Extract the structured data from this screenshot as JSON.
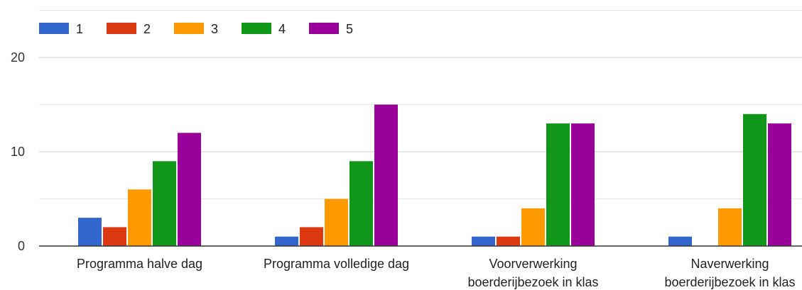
{
  "chart_data": {
    "type": "bar",
    "title": "",
    "xlabel": "",
    "ylabel": "",
    "ylim": [
      0,
      25
    ],
    "yticks": [
      0,
      10,
      20
    ],
    "grid": true,
    "legend_position": "top-left",
    "categories": [
      [
        "Programma halve dag"
      ],
      [
        "Programma volledige dag"
      ],
      [
        "Voorverwerking",
        "boerderijbezoek in klas"
      ],
      [
        "Naverwerking",
        "boerderijbezoek in klas"
      ]
    ],
    "series": [
      {
        "name": "1",
        "color": "#3366cc",
        "values": [
          3,
          1,
          1,
          1
        ]
      },
      {
        "name": "2",
        "color": "#dc3912",
        "values": [
          2,
          2,
          1,
          0
        ]
      },
      {
        "name": "3",
        "color": "#ff9900",
        "values": [
          6,
          5,
          4,
          4
        ]
      },
      {
        "name": "4",
        "color": "#109618",
        "values": [
          9,
          9,
          13,
          14
        ]
      },
      {
        "name": "5",
        "color": "#990099",
        "values": [
          12,
          15,
          13,
          13
        ]
      }
    ]
  }
}
